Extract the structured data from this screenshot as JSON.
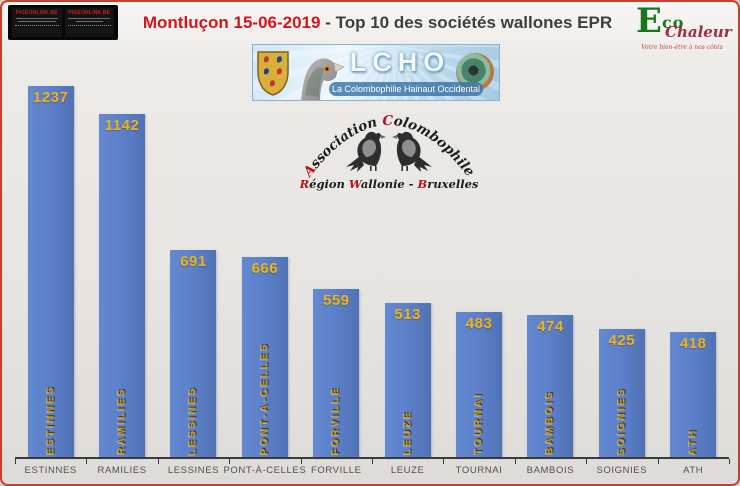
{
  "header": {
    "ad_banner": {
      "tile1_title": "PIGEONLINK.BE",
      "tile2_title": "PIGEONLINK.BE"
    },
    "title": {
      "highlight": "Montluçon 15-06-2019",
      "rest": " - Top 10 des sociétés wallones EPR",
      "highlight_color": "#d2161e",
      "rest_color": "#3f3f3f"
    },
    "eco_logo": {
      "e": "E",
      "co": "co",
      "chaleur": "Chaleur",
      "tagline": "Votre bien-être à nos côtés",
      "green": "#17771c",
      "red": "#a42c3c"
    },
    "lcho": {
      "acronym": "LCHO",
      "subtitle": "La Colombophilie Hainaut Occidental"
    },
    "assoc": {
      "arch_parts": [
        "A",
        "ssociation ",
        "C",
        "olombophile"
      ],
      "line2_parts": [
        "R",
        "égion ",
        "W",
        "allonie - ",
        "B",
        "ruxelles"
      ],
      "accent_red": "#b5121b"
    }
  },
  "chart_data": {
    "type": "bar",
    "title": "Montluçon 15-06-2019 - Top 10 des sociétés wallones EPR",
    "categories": [
      "ESTINNES",
      "RAMILIES",
      "LESSINES",
      "PONT-À-CELLES",
      "FORVILLE",
      "LEUZE",
      "TOURNAI",
      "BAMBOIS",
      "SOIGNIES",
      "ATH"
    ],
    "values": [
      1237,
      1142,
      691,
      666,
      559,
      513,
      483,
      474,
      425,
      418
    ],
    "xlabel": "",
    "ylabel": "",
    "ylim": [
      0,
      1270
    ],
    "grid": false,
    "legend": false,
    "value_label_position": "inside-top",
    "inner_vertical_labels": true,
    "bar_color": "#5b7ec8",
    "bar_color_light": "#6389d0",
    "bar_color_dark": "#5071b4",
    "value_label_color": "#eab420",
    "inner_label_color": "#bd9730",
    "axis_color": "#3b3b3b"
  }
}
